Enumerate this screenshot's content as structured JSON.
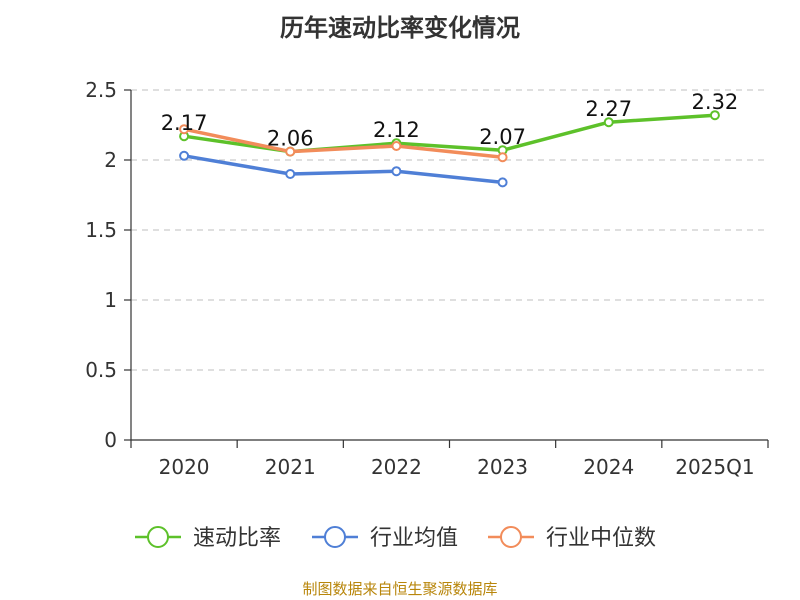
{
  "chart_data": {
    "type": "line",
    "title": "历年速动比率变化情况",
    "categories": [
      "2020",
      "2021",
      "2022",
      "2023",
      "2024",
      "2025Q1"
    ],
    "ylim": [
      0,
      2.5
    ],
    "yticks": [
      "0",
      "0.5",
      "1",
      "1.5",
      "2",
      "2.5"
    ],
    "grid": true,
    "legend_position": "bottom",
    "series": [
      {
        "name": "速动比率",
        "color": "#5dc12a",
        "values": [
          2.17,
          2.06,
          2.12,
          2.07,
          2.27,
          2.32
        ],
        "labels": [
          "2.17",
          "2.06",
          "2.12",
          "2.07",
          "2.27",
          "2.32"
        ]
      },
      {
        "name": "行业均值",
        "color": "#4f7fd6",
        "values": [
          2.03,
          1.9,
          1.92,
          1.84,
          null,
          null
        ]
      },
      {
        "name": "行业中位数",
        "color": "#f28c5a",
        "values": [
          2.22,
          2.06,
          2.1,
          2.02,
          null,
          null
        ]
      }
    ]
  },
  "source": "制图数据来自恒生聚源数据库"
}
